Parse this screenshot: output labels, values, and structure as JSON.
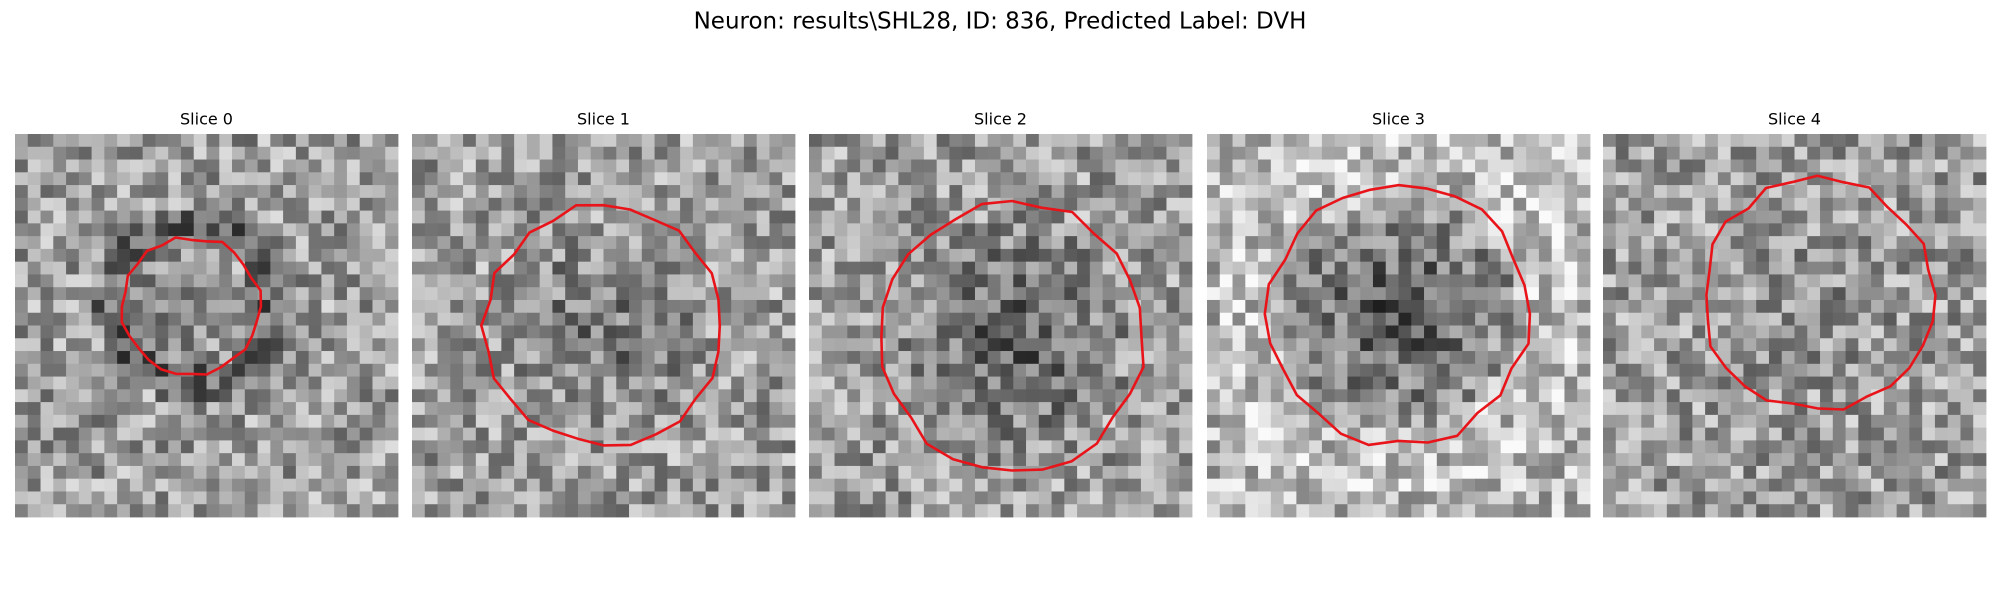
{
  "figure": {
    "title": "Neuron: results\\SHL28, ID: 836, Predicted Label: DVH",
    "panels": [
      {
        "title": "Slice 0"
      },
      {
        "title": "Slice 1"
      },
      {
        "title": "Slice 2"
      },
      {
        "title": "Slice 3"
      },
      {
        "title": "Slice 4"
      }
    ]
  }
}
